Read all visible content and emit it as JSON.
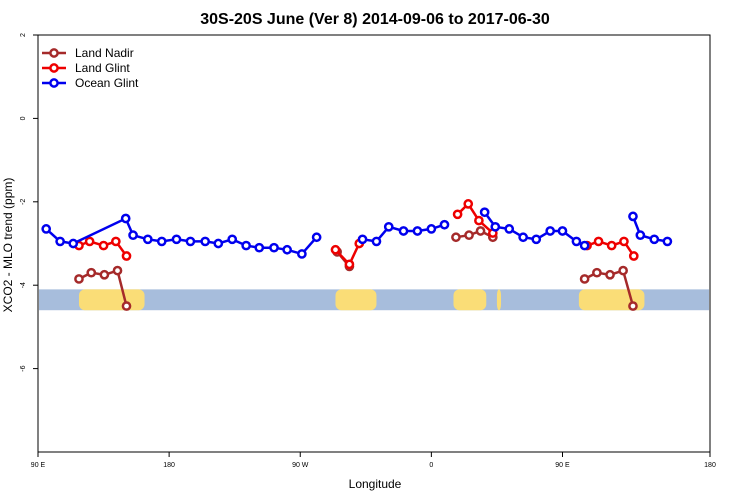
{
  "chart_data": {
    "type": "line",
    "title": "30S-20S June (Ver 8)   2014-09-06 to 2017-06-30",
    "xlabel": "Longitude",
    "ylabel": "XCO2 - MLO trend (ppm)",
    "xlim": [
      -2.6,
      5.6
    ],
    "ylim": [
      -8,
      2
    ],
    "x_ticks": [
      {
        "value": -2.6,
        "label": "90 E"
      },
      {
        "value": -1,
        "label": "180"
      },
      {
        "value": 0.6,
        "label": "90 W"
      },
      {
        "value": 2.2,
        "label": "0"
      },
      {
        "value": 3.8,
        "label": "90 E"
      },
      {
        "value": 5.6,
        "label": "180"
      }
    ],
    "y_ticks": [
      {
        "value": 2,
        "label": "2"
      },
      {
        "value": 0,
        "label": "0"
      },
      {
        "value": -2,
        "label": "-2"
      },
      {
        "value": -4,
        "label": "-4"
      },
      {
        "value": -6,
        "label": "-6"
      }
    ],
    "map_band": {
      "ymin": -4.6,
      "ymax": -4.1,
      "ocean_color": "#a7bddc",
      "land_color": "#fadd77"
    },
    "land_masses": [
      {
        "x0": -2.1,
        "x1": -1.3
      },
      {
        "x0": 1.03,
        "x1": 1.53
      },
      {
        "x0": 2.47,
        "x1": 2.87
      },
      {
        "x0": 3.0,
        "x1": 3.05
      },
      {
        "x0": 4.0,
        "x1": 4.8
      }
    ],
    "legend": {
      "position": "top-left",
      "entries": [
        {
          "label": "Land Nadir",
          "color": "#a52a2a"
        },
        {
          "label": "Land Glint",
          "color": "#ee0000"
        },
        {
          "label": "Ocean Glint",
          "color": "#0000ee"
        }
      ]
    },
    "series": [
      {
        "name": "Land Nadir",
        "color": "#a52a2a",
        "segments": [
          [
            [
              -2.1,
              -3.85
            ],
            [
              -1.95,
              -3.7
            ],
            [
              -1.79,
              -3.75
            ],
            [
              -1.63,
              -3.65
            ],
            [
              -1.52,
              -4.5
            ]
          ],
          [
            [
              1.05,
              -3.2
            ],
            [
              1.2,
              -3.55
            ]
          ],
          [
            [
              2.5,
              -2.85
            ],
            [
              2.66,
              -2.8
            ],
            [
              2.8,
              -2.7
            ],
            [
              2.95,
              -2.85
            ]
          ],
          [
            [
              4.07,
              -3.85
            ],
            [
              4.22,
              -3.7
            ],
            [
              4.38,
              -3.75
            ],
            [
              4.54,
              -3.65
            ],
            [
              4.66,
              -4.5
            ]
          ]
        ]
      },
      {
        "name": "Land Glint",
        "color": "#ee0000",
        "segments": [
          [
            [
              -2.1,
              -3.05
            ],
            [
              -1.97,
              -2.95
            ],
            [
              -1.8,
              -3.05
            ],
            [
              -1.65,
              -2.95
            ],
            [
              -1.52,
              -3.3
            ]
          ],
          [
            [
              1.03,
              -3.15
            ],
            [
              1.2,
              -3.5
            ],
            [
              1.32,
              -3.0
            ]
          ],
          [
            [
              2.52,
              -2.3
            ],
            [
              2.65,
              -2.05
            ],
            [
              2.78,
              -2.45
            ],
            [
              2.95,
              -2.75
            ]
          ],
          [
            [
              4.1,
              -3.05
            ],
            [
              4.24,
              -2.95
            ],
            [
              4.4,
              -3.05
            ],
            [
              4.55,
              -2.95
            ],
            [
              4.67,
              -3.3
            ]
          ]
        ]
      },
      {
        "name": "Ocean Glint",
        "color": "#0000ee",
        "segments": [
          [
            [
              -2.5,
              -2.65
            ],
            [
              -2.33,
              -2.95
            ],
            [
              -2.17,
              -3.0
            ],
            [
              -1.53,
              -2.4
            ],
            [
              -1.44,
              -2.8
            ],
            [
              -1.26,
              -2.9
            ],
            [
              -1.09,
              -2.95
            ],
            [
              -0.91,
              -2.9
            ],
            [
              -0.74,
              -2.95
            ],
            [
              -0.56,
              -2.95
            ],
            [
              -0.4,
              -3.0
            ],
            [
              -0.23,
              -2.9
            ],
            [
              -0.06,
              -3.05
            ],
            [
              0.1,
              -3.1
            ],
            [
              0.28,
              -3.1
            ],
            [
              0.44,
              -3.15
            ],
            [
              0.62,
              -3.25
            ],
            [
              0.8,
              -2.85
            ]
          ],
          [
            [
              1.36,
              -2.9
            ],
            [
              1.53,
              -2.95
            ],
            [
              1.68,
              -2.6
            ],
            [
              1.86,
              -2.7
            ],
            [
              2.03,
              -2.7
            ],
            [
              2.2,
              -2.65
            ],
            [
              2.36,
              -2.55
            ]
          ],
          [
            [
              2.85,
              -2.25
            ],
            [
              2.98,
              -2.6
            ],
            [
              3.15,
              -2.65
            ],
            [
              3.32,
              -2.85
            ],
            [
              3.48,
              -2.9
            ],
            [
              3.65,
              -2.7
            ],
            [
              3.8,
              -2.7
            ],
            [
              3.97,
              -2.95
            ],
            [
              4.07,
              -3.05
            ]
          ],
          [
            [
              4.66,
              -2.35
            ],
            [
              4.75,
              -2.8
            ],
            [
              4.92,
              -2.9
            ],
            [
              5.08,
              -2.95
            ]
          ]
        ]
      }
    ]
  }
}
